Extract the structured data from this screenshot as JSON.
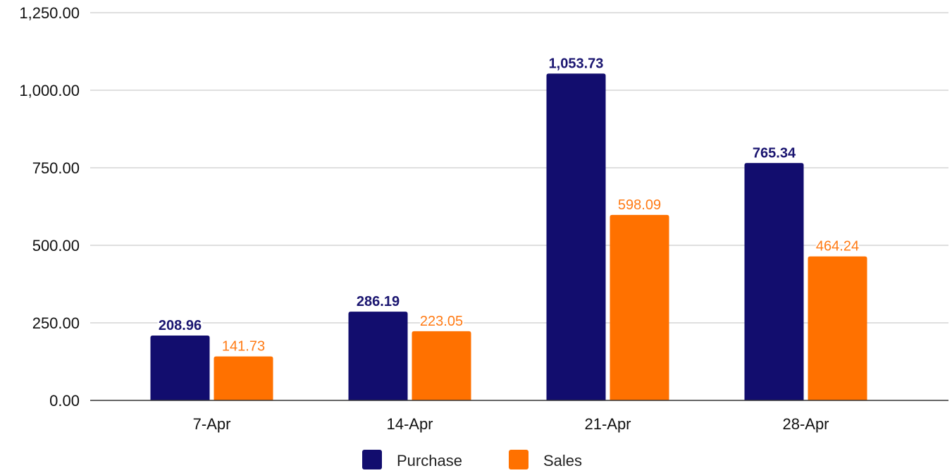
{
  "chart_data": {
    "type": "bar",
    "categories": [
      "7-Apr",
      "14-Apr",
      "21-Apr",
      "28-Apr"
    ],
    "series": [
      {
        "name": "Purchase",
        "values": [
          208.96,
          286.19,
          1053.73,
          765.34
        ],
        "labels": [
          "208.96",
          "286.19",
          "1,053.73",
          "765.34"
        ],
        "color": "#120D6E",
        "label_color": "#1A1570",
        "label_weight": "bold"
      },
      {
        "name": "Sales",
        "values": [
          141.73,
          223.05,
          598.09,
          464.24
        ],
        "labels": [
          "141.73",
          "223.05",
          "598.09",
          "464.24"
        ],
        "color": "#FF7100",
        "label_color": "#FF7A14",
        "label_weight": "normal"
      }
    ],
    "ylim": [
      0,
      1250
    ],
    "yticks": [
      0,
      250,
      500,
      750,
      1000,
      1250
    ],
    "ytick_labels": [
      "0.00",
      "250.00",
      "500.00",
      "750.00",
      "1,000.00",
      "1,250.00"
    ],
    "grid": true,
    "legend_position": "bottom-center",
    "title": "",
    "xlabel": "",
    "ylabel": ""
  }
}
